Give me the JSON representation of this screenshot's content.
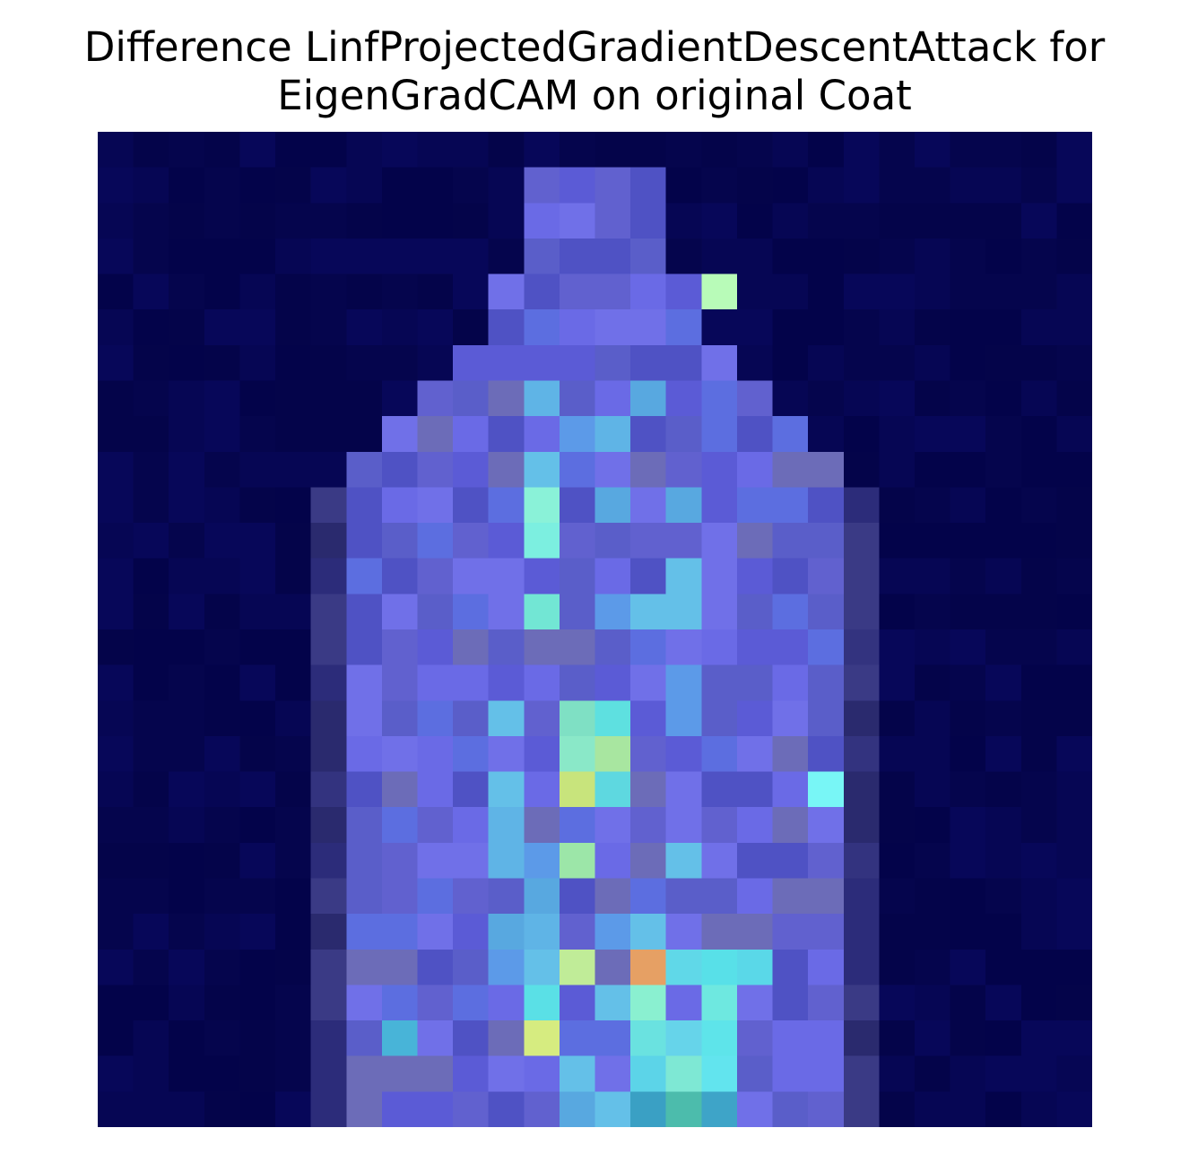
{
  "title": {
    "line1": "Difference LinfProjectedGradientDescentAttack for",
    "line2": "EigenGradCAM on original Coat"
  },
  "image": {
    "kind": "heatmap overlay on a low-resolution grayscale coat silhouette",
    "colormap": "jet (blended with underlying image)",
    "axes_visible": false,
    "grid_size": [
      28,
      28
    ]
  }
}
